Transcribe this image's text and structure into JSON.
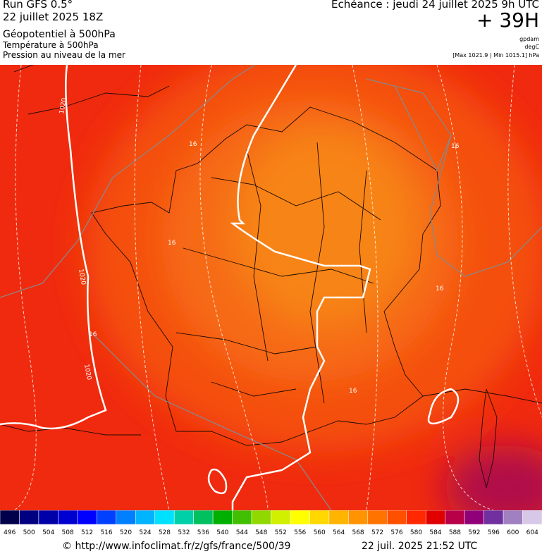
{
  "header": {
    "run": "Run GFS 0.5°",
    "date": "22 juillet 2025 18Z",
    "line1": "Géopotentiel à 500hPa",
    "line2": "Température à 500hPa",
    "line3": "Pression au niveau de la mer",
    "echeance": "Echéance : jeudi 24 juillet 2025 9h UTC",
    "offset": "+ 39H",
    "unit1": "gpdam",
    "unit2": "degC",
    "range": "[Max 1021.9 | Min 1015.1] hPa"
  },
  "map": {
    "labels": [
      "1020",
      "1020",
      "1020",
      "16",
      "16",
      "16",
      "16",
      "16",
      "16"
    ]
  },
  "legend": {
    "values": [
      496,
      500,
      504,
      508,
      512,
      516,
      520,
      524,
      528,
      532,
      536,
      540,
      544,
      548,
      552,
      556,
      560,
      564,
      568,
      572,
      576,
      580,
      584,
      588,
      592,
      596,
      600,
      604
    ],
    "colors": [
      "#00004b",
      "#000080",
      "#0000a8",
      "#0000d0",
      "#0000ff",
      "#0040ff",
      "#0080ff",
      "#00b4ff",
      "#00e0ff",
      "#00d0a8",
      "#00c060",
      "#00b000",
      "#40c000",
      "#90d800",
      "#d0f000",
      "#ffff00",
      "#ffd800",
      "#ffb400",
      "#ff9400",
      "#ff7400",
      "#ff5000",
      "#ff2800",
      "#e00000",
      "#b80048",
      "#900078",
      "#7030a0",
      "#a080c0",
      "#d8c8e8"
    ]
  },
  "footer": {
    "url": "© http://www.infoclimat.fr/z/gfs/france/500/39",
    "time": "22 juil. 2025 21:52 UTC"
  }
}
